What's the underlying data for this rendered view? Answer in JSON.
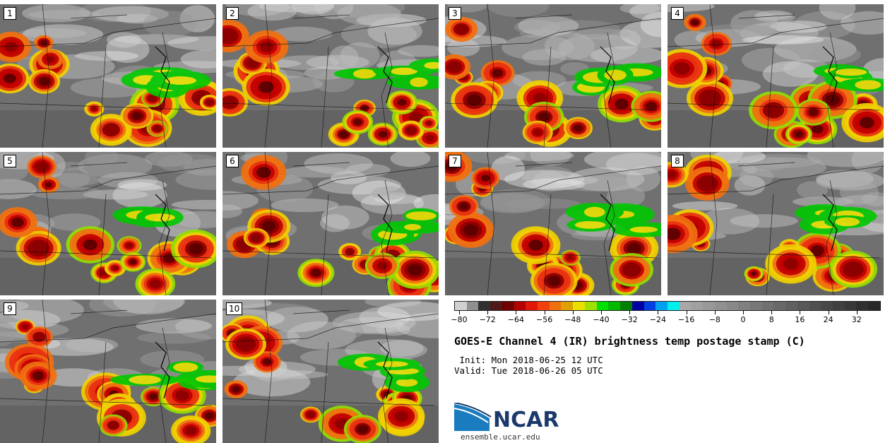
{
  "panels": [
    {
      "label": "1"
    },
    {
      "label": "2"
    },
    {
      "label": "3"
    },
    {
      "label": "4"
    },
    {
      "label": "5"
    },
    {
      "label": "6"
    },
    {
      "label": "7"
    },
    {
      "label": "8"
    },
    {
      "label": "9"
    },
    {
      "label": "10"
    }
  ],
  "colorbar": {
    "colors": [
      "#d0d0d0",
      "#909090",
      "#303030",
      "#501818",
      "#700000",
      "#b00000",
      "#e01808",
      "#f04010",
      "#f07010",
      "#e0a000",
      "#e8e000",
      "#a0e000",
      "#00e000",
      "#00b800",
      "#008000",
      "#0000a0",
      "#0040e0",
      "#00a0f0",
      "#00f0f0",
      "#a8a8a8",
      "#a0a0a0",
      "#989898",
      "#909090",
      "#888888",
      "#808080",
      "#787878",
      "#707070",
      "#686868",
      "#606060",
      "#585858",
      "#505050",
      "#484848",
      "#404040",
      "#383838",
      "#303030",
      "#282828"
    ],
    "tick_labels": [
      "−80",
      "−72",
      "−64",
      "−56",
      "−48",
      "−40",
      "−32",
      "−24",
      "−16",
      "−8",
      "0",
      "8",
      "16",
      "24",
      "32"
    ]
  },
  "title": "GOES-E Channel 4 (IR) brightness temp postage stamp (C)",
  "init": " Init: Mon 2018-06-25 12 UTC",
  "valid": "Valid: Tue 2018-06-26 05 UTC",
  "logo": {
    "text": "NCAR"
  },
  "site": "ensemble.ucar.edu"
}
